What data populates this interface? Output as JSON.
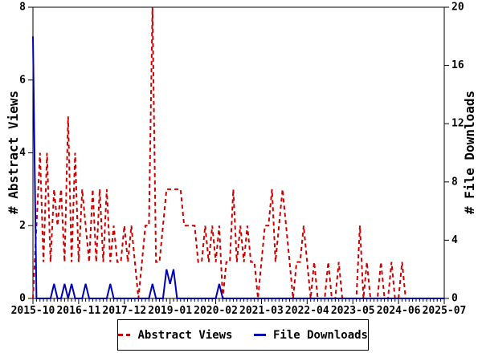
{
  "chart_data": {
    "type": "line",
    "x": [
      "2015-10",
      "2015-11",
      "2015-12",
      "2016-01",
      "2016-02",
      "2016-03",
      "2016-04",
      "2016-05",
      "2016-06",
      "2016-07",
      "2016-08",
      "2016-09",
      "2016-10",
      "2016-11",
      "2016-12",
      "2017-01",
      "2017-02",
      "2017-03",
      "2017-04",
      "2017-05",
      "2017-06",
      "2017-07",
      "2017-08",
      "2017-09",
      "2017-10",
      "2017-11",
      "2017-12",
      "2018-01",
      "2018-02",
      "2018-03",
      "2018-04",
      "2018-05",
      "2018-06",
      "2018-07",
      "2018-08",
      "2018-09",
      "2018-10",
      "2018-11",
      "2018-12",
      "2019-01",
      "2019-02",
      "2019-03",
      "2019-04",
      "2019-05",
      "2019-06",
      "2019-07",
      "2019-08",
      "2019-09",
      "2019-10",
      "2019-11",
      "2019-12",
      "2020-01",
      "2020-02",
      "2020-03",
      "2020-04",
      "2020-05",
      "2020-06",
      "2020-07",
      "2020-08",
      "2020-09",
      "2020-10",
      "2020-11",
      "2020-12",
      "2021-01",
      "2021-02",
      "2021-03",
      "2021-04",
      "2021-05",
      "2021-06",
      "2021-07",
      "2021-08",
      "2021-09",
      "2021-10",
      "2021-11",
      "2021-12",
      "2022-01",
      "2022-02",
      "2022-03",
      "2022-04",
      "2022-05",
      "2022-06",
      "2022-07",
      "2022-08",
      "2022-09",
      "2022-10",
      "2022-11",
      "2022-12",
      "2023-01",
      "2023-02",
      "2023-03",
      "2023-04",
      "2023-05",
      "2023-06",
      "2023-07",
      "2023-08",
      "2023-09",
      "2023-10",
      "2023-11",
      "2023-12",
      "2024-01",
      "2024-02",
      "2024-03",
      "2024-04",
      "2024-05",
      "2024-06",
      "2024-07",
      "2024-08",
      "2024-09",
      "2024-10",
      "2024-11",
      "2024-12",
      "2025-01",
      "2025-02",
      "2025-03",
      "2025-04",
      "2025-05",
      "2025-06",
      "2025-07"
    ],
    "series": [
      {
        "name": "Abstract Views",
        "axis": "left",
        "color": "#cc0000",
        "style": "dashed",
        "values": [
          0,
          2,
          4,
          1,
          4,
          1,
          3,
          2,
          3,
          1,
          5,
          1,
          4,
          1,
          3,
          2,
          1,
          3,
          1,
          3,
          1,
          3,
          1,
          2,
          1,
          1,
          2,
          1,
          2,
          1,
          0,
          1,
          2,
          2,
          8,
          1,
          1,
          2,
          3,
          3,
          3,
          3,
          3,
          2,
          2,
          2,
          2,
          1,
          1,
          2,
          1,
          2,
          1,
          2,
          0,
          1,
          1,
          3,
          1,
          2,
          1,
          2,
          1,
          1,
          0,
          1,
          2,
          2,
          3,
          1,
          2,
          3,
          2,
          1,
          0,
          1,
          1,
          2,
          1,
          0,
          1,
          0,
          0,
          0,
          1,
          0,
          0,
          1,
          0,
          0,
          0,
          0,
          0,
          2,
          0,
          1,
          0,
          0,
          0,
          1,
          0,
          0,
          1,
          0,
          0,
          1,
          0,
          0,
          0,
          0,
          0,
          0,
          0,
          0,
          0,
          0,
          0,
          0
        ]
      },
      {
        "name": "File Downloads",
        "axis": "right",
        "color": "#0000b3",
        "style": "solid",
        "values": [
          18,
          0,
          0,
          0,
          0,
          0,
          1,
          0,
          0,
          1,
          0,
          1,
          0,
          0,
          0,
          1,
          0,
          0,
          0,
          0,
          0,
          0,
          1,
          0,
          0,
          0,
          0,
          0,
          0,
          0,
          0,
          0,
          0,
          0,
          1,
          0,
          0,
          0,
          2,
          1,
          2,
          0,
          0,
          0,
          0,
          0,
          0,
          0,
          0,
          0,
          0,
          0,
          0,
          1,
          0,
          0,
          0,
          0,
          0,
          0,
          0,
          0,
          0,
          0,
          0,
          0,
          0,
          0,
          0,
          0,
          0,
          0,
          0,
          0,
          0,
          0,
          0,
          0,
          0,
          0,
          0,
          0,
          0,
          0,
          0,
          0,
          0,
          0,
          0,
          0,
          0,
          0,
          0,
          0,
          0,
          0,
          0,
          0,
          0,
          0,
          0,
          0,
          0,
          0,
          0,
          0,
          0,
          0,
          0,
          0,
          0,
          0,
          0,
          0,
          0,
          0,
          0,
          0
        ]
      }
    ],
    "ylabel_left": "# Abstract Views",
    "ylabel_right": "# File Downloads",
    "ylim_left": [
      0,
      8
    ],
    "ylim_right": [
      0,
      20
    ],
    "yticks_left": [
      0,
      2,
      4,
      6,
      8
    ],
    "yticks_right": [
      0,
      4,
      8,
      12,
      16,
      20
    ],
    "xtick_labels": [
      "2015-10",
      "2016-11",
      "2017-12",
      "2019-01",
      "2020-02",
      "2021-03",
      "2022-04",
      "2023-05",
      "2024-06",
      "2025-07"
    ],
    "xtick_every_months": 13,
    "grid": false,
    "legend_position": "bottom",
    "axis_color": "#000000",
    "background_color": "#ffffff"
  },
  "legend": {
    "items": [
      {
        "label": "Abstract Views"
      },
      {
        "label": "File Downloads"
      }
    ]
  }
}
